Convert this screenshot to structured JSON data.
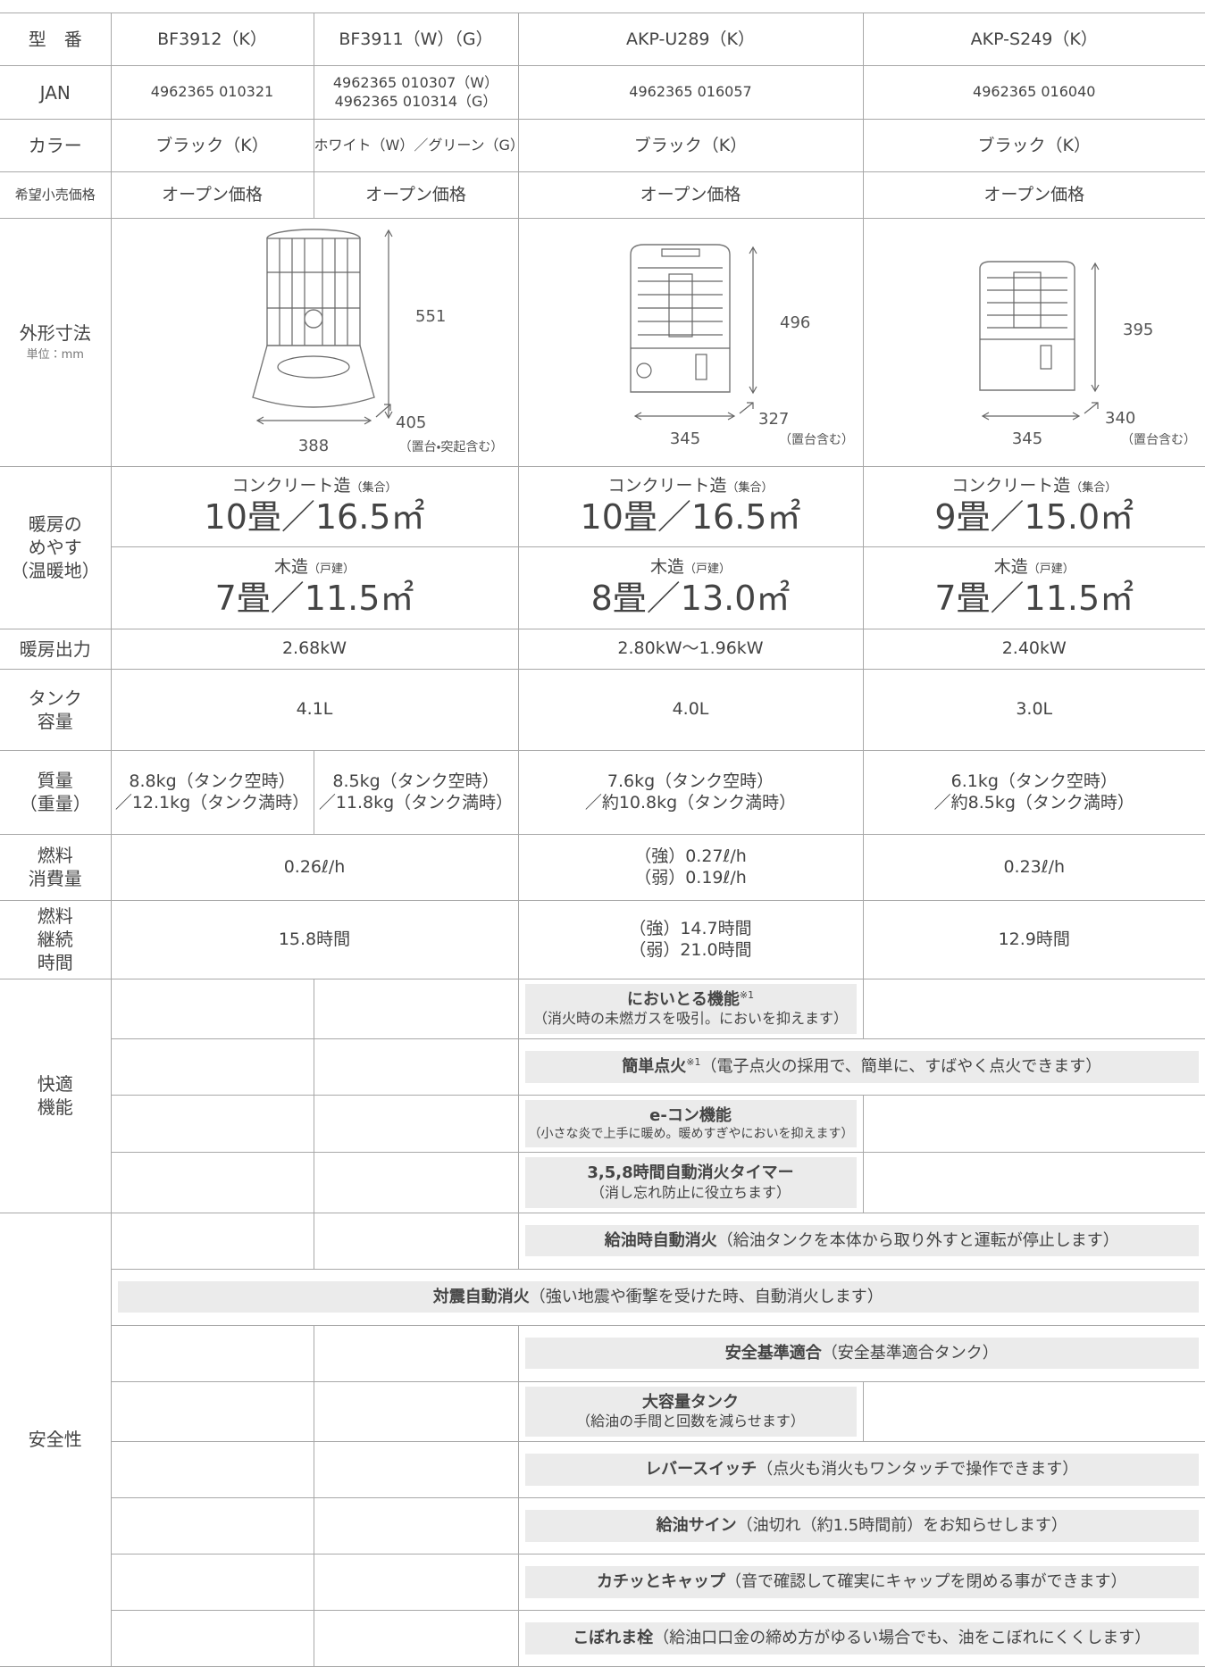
{
  "table": {
    "model": {
      "label": "型　番",
      "cells": [
        "BF3912（K）",
        "BF3911（W）（G）",
        "AKP-U289（K）",
        "AKP-S249（K）"
      ]
    },
    "jan": {
      "label": "JAN",
      "cells": [
        [
          "4962365 010321"
        ],
        [
          "4962365 010307（W）",
          "4962365 010314（G）"
        ],
        [
          "4962365 016057"
        ],
        [
          "4962365 016040"
        ]
      ]
    },
    "color": {
      "label": "カラー",
      "cells": [
        "ブラック（K）",
        "ホワイト（W）／グリーン（G）",
        "ブラック（K）",
        "ブラック（K）"
      ]
    },
    "price": {
      "label": "希望小売価格",
      "cells": [
        "オープン価格",
        "オープン価格",
        "オープン価格",
        "オープン価格"
      ]
    },
    "size": {
      "label": "外形寸法",
      "unit": "単位：mm",
      "models": [
        {
          "height": 551,
          "depth": 405,
          "width": 388,
          "note": "（置台・突起含む）"
        },
        {
          "height": 496,
          "depth": 327,
          "width": 345,
          "note": "（置台含む）"
        },
        {
          "height": 395,
          "depth": 340,
          "width": 345,
          "note": "（置台含む）"
        }
      ]
    },
    "heating": {
      "label": [
        "暖房の",
        "めやす",
        "（温暖地）"
      ],
      "concrete_label": "コンクリート造",
      "concrete_note": "（集合）",
      "wood_label": "木造",
      "wood_note": "（戸建）",
      "concrete": [
        "10畳／16.5㎡",
        "10畳／16.5㎡",
        "9畳／15.0㎡"
      ],
      "wood": [
        "7畳／11.5㎡",
        "8畳／13.0㎡",
        "7畳／11.5㎡"
      ]
    },
    "output": {
      "label": "暖房出力",
      "cells": [
        "2.68kW",
        "2.80kW～1.96kW",
        "2.40kW"
      ]
    },
    "tank": {
      "label": [
        "タンク",
        "容量"
      ],
      "cells": [
        "4.1L",
        "4.0L",
        "3.0L"
      ]
    },
    "weight": {
      "label": [
        "質量",
        "（重量）"
      ],
      "cells": [
        [
          "8.8kg（タンク空時）",
          "／12.1kg（タンク満時）"
        ],
        [
          "8.5kg（タンク空時）",
          "／11.8kg（タンク満時）"
        ],
        [
          "7.6kg（タンク空時）",
          "／約10.8kg（タンク満時）"
        ],
        [
          "6.1kg（タンク空時）",
          "／約8.5kg（タンク満時）"
        ]
      ]
    },
    "consumption": {
      "label": [
        "燃料",
        "消費量"
      ],
      "cells": [
        [
          "0.26ℓ/h"
        ],
        [
          "（強）0.27ℓ/h",
          "（弱）0.19ℓ/h"
        ],
        [
          "0.23ℓ/h"
        ]
      ]
    },
    "duration": {
      "label": [
        "燃料",
        "継続",
        "時間"
      ],
      "cells": [
        [
          "15.8時間"
        ],
        [
          "（強）14.7時間",
          "（弱）21.0時間"
        ],
        [
          "12.9時間"
        ]
      ]
    },
    "comfort": {
      "label": [
        "快適",
        "機能"
      ],
      "features": [
        {
          "title": "においとる機能",
          "note": "※1",
          "desc": "（消火時の未燃ガスを吸引。においを抑えます）"
        },
        {
          "title": "簡単点火",
          "note": "※1",
          "desc": "（電子点火の採用で、簡単に、すばやく点火できます）"
        },
        {
          "title": "e-コン機能",
          "desc": "（小さな炎で上手に暖め。暖めすぎやにおいを抑えます）"
        },
        {
          "title": "3,5,8時間自動消火タイマー",
          "desc": "（消し忘れ防止に役立ちます）"
        }
      ]
    },
    "safety": {
      "label": "安全性",
      "features": [
        {
          "title": "給油時自動消火",
          "desc": "（給油タンクを本体から取り外すと運転が停止します）"
        },
        {
          "title": "対震自動消火",
          "desc": "（強い地震や衝撃を受けた時、自動消火します）"
        },
        {
          "title": "安全基準適合",
          "desc": "（安全基準適合タンク）"
        },
        {
          "title": "大容量タンク",
          "desc": "（給油の手間と回数を減らせます）"
        },
        {
          "title": "レバースイッチ",
          "desc": "（点火も消火もワンタッチで操作できます）"
        },
        {
          "title": "給油サイン",
          "desc": "（油切れ（約1.5時間前）をお知らせします）"
        },
        {
          "title": "カチッとキャップ",
          "desc": "（音で確認して確実にキャップを閉める事ができます）"
        },
        {
          "title": "こぼれま栓",
          "desc": "（給油口口金の締め方がゆるい場合でも、油をこぼれにくくします）"
        }
      ]
    }
  }
}
